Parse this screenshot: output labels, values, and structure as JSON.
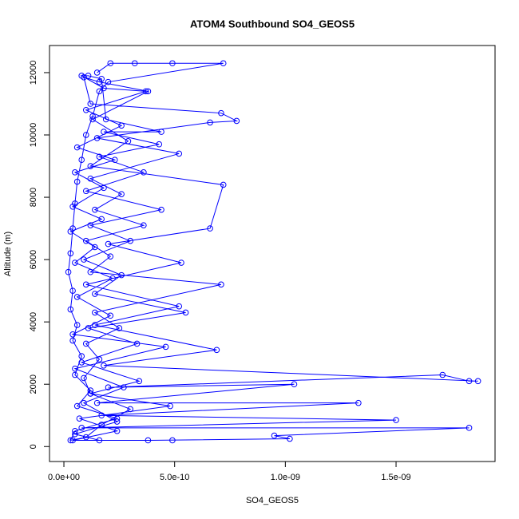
{
  "chart_data": {
    "type": "line",
    "title": "ATOM4 Southbound SO4_GEOS5",
    "xlabel": "SO4_GEOS5",
    "ylabel": "Altitude (m)",
    "markers": true,
    "grid": false,
    "xlim": [
      -6.5e-11,
      1.947e-09
    ],
    "ylim": [
      -480,
      12870
    ],
    "xticks": [
      {
        "value": 0,
        "label": "0.0e+00"
      },
      {
        "value": 5e-10,
        "label": "5.0e-10"
      },
      {
        "value": 1e-09,
        "label": "1.0e-09"
      },
      {
        "value": 1.5e-09,
        "label": "1.5e-09"
      }
    ],
    "yticks": [
      0,
      2000,
      4000,
      6000,
      8000,
      10000,
      12000
    ],
    "series": [
      {
        "name": "SO4_GEOS5",
        "color": "#0000ff",
        "x": [
          1.5e-10,
          2.1e-10,
          3.2e-10,
          4.9e-10,
          7.2e-10,
          2e-10,
          1.6e-10,
          1.3e-10,
          1e-10,
          8e-11,
          6e-11,
          5e-11,
          4e-11,
          3e-11,
          2e-11,
          4e-11,
          3e-11,
          6e-11,
          4e-11,
          8e-11,
          5e-11,
          1.2e-10,
          6e-11,
          2.4e-10,
          5e-11,
          3e-11,
          1e-10,
          1.7e-10,
          3e-10,
          1.2e-10,
          9e-11,
          1.6e-10,
          1e-10,
          2.5e-10,
          1.4e-10,
          7.1e-10,
          1.2e-10,
          2.1e-10,
          1e-10,
          3.6e-10,
          1.4e-10,
          2.6e-10,
          1.2e-10,
          5.2e-10,
          1.5e-10,
          6.6e-10,
          7.8e-10,
          7.1e-10,
          1.2e-10,
          9e-11,
          1.6e-10,
          3.8e-10,
          1.3e-10,
          2.9e-10,
          1.2e-10,
          7.2e-10,
          6.6e-10,
          2e-10,
          5.3e-10,
          1e-10,
          5.2e-10,
          1.4e-10,
          6.9e-10,
          1.8e-10,
          1.87e-09,
          1.83e-09,
          1.71e-09,
          2e-10,
          1.04e-09,
          1.5e-10,
          1.33e-09,
          1.7e-10,
          1.5e-09,
          8e-11,
          1.83e-09,
          9.5e-10,
          1.02e-09,
          3.8e-10,
          4e-11,
          2.4e-10,
          7e-11,
          4.8e-10,
          1.2e-10,
          3.4e-10,
          8e-11,
          3.3e-10,
          1.1e-10,
          5.5e-10,
          1.4e-10,
          2.6e-10,
          9e-11,
          3e-10,
          1.2e-10,
          4.4e-10,
          1e-10,
          3.6e-10,
          1.6e-10,
          4.3e-10,
          1.8e-10,
          4.4e-10,
          1.9e-10,
          1.7e-10,
          1.1e-10,
          8e-11,
          1.8e-10,
          3.7e-10,
          1e-10,
          2.6e-10,
          6e-11,
          2.3e-10,
          5e-11,
          1.8e-10,
          4e-11,
          1.7e-10,
          3e-11,
          1.4e-10,
          5e-11,
          2.2e-10,
          6e-11,
          2.1e-10,
          4e-11,
          4.6e-10,
          5e-11,
          2.7e-10,
          9e-11,
          2.4e-10,
          5e-11,
          1.6e-10,
          4.9e-10
        ],
        "values": [
          12000,
          12300,
          12300,
          12300,
          12300,
          11700,
          11400,
          10600,
          10000,
          9200,
          8500,
          7800,
          7000,
          6200,
          5600,
          5000,
          4400,
          3900,
          3400,
          2900,
          2300,
          1800,
          1300,
          900,
          500,
          200,
          300,
          700,
          1200,
          1700,
          2200,
          2800,
          3300,
          3800,
          4300,
          5200,
          5600,
          6100,
          6600,
          7100,
          7600,
          8100,
          8600,
          9400,
          9900,
          10400,
          10450,
          10700,
          11000,
          11850,
          11700,
          11400,
          10500,
          9800,
          9000,
          8400,
          7000,
          6500,
          5900,
          5200,
          4500,
          3900,
          3100,
          2600,
          2100,
          2100,
          2300,
          1900,
          2000,
          1400,
          1400,
          1000,
          850,
          600,
          600,
          350,
          250,
          200,
          200,
          500,
          900,
          1300,
          1700,
          2100,
          2700,
          3300,
          3800,
          4300,
          4900,
          5500,
          6000,
          6600,
          7100,
          7600,
          8200,
          8800,
          9300,
          9700,
          10100,
          10100,
          10500,
          11800,
          11900,
          11900,
          11500,
          11400,
          10800,
          10300,
          9600,
          9200,
          8800,
          8300,
          7700,
          7300,
          6900,
          6400,
          5900,
          5400,
          4800,
          4200,
          3600,
          3200,
          2500,
          1900,
          1400,
          800,
          400,
          200,
          200
        ]
      }
    ]
  }
}
